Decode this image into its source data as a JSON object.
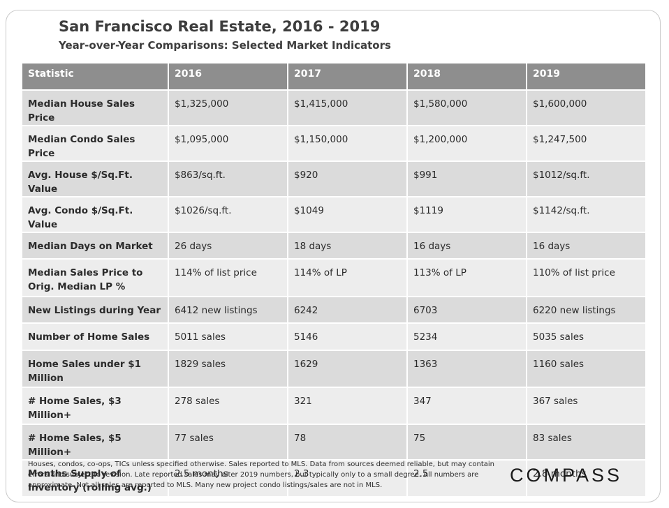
{
  "title": "San Francisco Real Estate, 2016 - 2019",
  "subtitle": "Year-over-Year  Comparisons:  Selected Market Indicators",
  "chart_data": {
    "type": "table",
    "title": "San Francisco Real Estate, 2016 - 2019",
    "subtitle": "Year-over-Year  Comparisons:  Selected Market Indicators",
    "headers": [
      "Statistic",
      "2016",
      "2017",
      "2018",
      "2019"
    ],
    "rows": [
      {
        "label": "Median House Sales Price",
        "values": [
          "$1,325,000",
          "$1,415,000",
          "$1,580,000",
          "$1,600,000"
        ]
      },
      {
        "label": "Median Condo Sales Price",
        "values": [
          "$1,095,000",
          "$1,150,000",
          "$1,200,000",
          "$1,247,500"
        ]
      },
      {
        "label": "Avg. House $/Sq.Ft. Value",
        "values": [
          "$863/sq.ft.",
          "$920",
          "$991",
          "$1012/sq.ft."
        ]
      },
      {
        "label": "Avg. Condo $/Sq.Ft. Value",
        "values": [
          "$1026/sq.ft.",
          "$1049",
          "$1119",
          "$1142/sq.ft."
        ]
      },
      {
        "label": "Median Days on Market",
        "values": [
          "26 days",
          "18 days",
          "16 days",
          "16 days"
        ]
      },
      {
        "label": "Median Sales Price to Orig. Median LP %",
        "values": [
          "114% of list price",
          "114% of LP",
          "113% of LP",
          "110% of list price"
        ]
      },
      {
        "label": "New Listings during Year",
        "values": [
          "6412 new listings",
          "6242",
          "6703",
          "6220 new listings"
        ]
      },
      {
        "label": "Number of Home Sales",
        "values": [
          "5011 sales",
          "5146",
          "5234",
          "5035 sales"
        ]
      },
      {
        "label": "Home Sales under $1 Million",
        "values": [
          "1829 sales",
          "1629",
          "1363",
          "1160 sales"
        ]
      },
      {
        "label": "# Home Sales, $3 Million+",
        "values": [
          "278 sales",
          "321",
          "347",
          "367 sales"
        ]
      },
      {
        "label": "# Home Sales, $5 Million+",
        "values": [
          "77 sales",
          "78",
          "75",
          "83 sales"
        ]
      },
      {
        "label": "Months Supply of Inventory (rolling avg.)",
        "values": [
          "2.5 months",
          "2.3",
          "2.5",
          "2.8 months"
        ]
      }
    ]
  },
  "footnote": "Houses, condos, co-ops, TICs unless specified otherwise. Sales reported to MLS. Data from sources deemed reliable, but may contain errors and subject to revision. Late reported sales may alter 2019 numbers, but typically only to a small degree. All numbers are approximate. Not all sales are reported to MLS. Many new project condo listings/sales are not in MLS.",
  "logo": "COMPASS"
}
